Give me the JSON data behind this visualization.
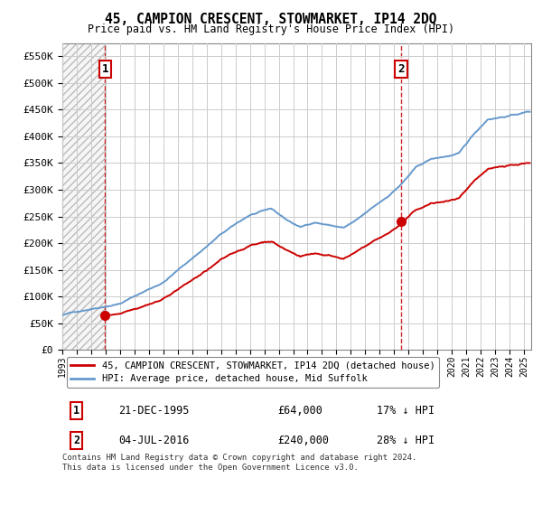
{
  "title": "45, CAMPION CRESCENT, STOWMARKET, IP14 2DQ",
  "subtitle": "Price paid vs. HM Land Registry's House Price Index (HPI)",
  "hpi_label": "HPI: Average price, detached house, Mid Suffolk",
  "price_label": "45, CAMPION CRESCENT, STOWMARKET, IP14 2DQ (detached house)",
  "sale1_date": "21-DEC-1995",
  "sale1_price": 64000,
  "sale1_price_str": "£64,000",
  "sale1_hpi_diff": "17% ↓ HPI",
  "sale2_date": "04-JUL-2016",
  "sale2_price": 240000,
  "sale2_price_str": "£240,000",
  "sale2_hpi_diff": "28% ↓ HPI",
  "sale1_year": 1995.97,
  "sale2_year": 2016.5,
  "annotation1": "1",
  "annotation2": "2",
  "ylim": [
    0,
    575000
  ],
  "xlim_start": 1993,
  "xlim_end": 2025.5,
  "hpi_color": "#6699cc",
  "price_color": "#cc0000",
  "vline_color": "#cc0000",
  "grid_color": "#cccccc",
  "background_color": "#ffffff",
  "footnote": "Contains HM Land Registry data © Crown copyright and database right 2024.\nThis data is licensed under the Open Government Licence v3.0.",
  "yticks": [
    0,
    50000,
    100000,
    150000,
    200000,
    250000,
    300000,
    350000,
    400000,
    450000,
    500000,
    550000
  ],
  "ytick_labels": [
    "£0",
    "£50K",
    "£100K",
    "£150K",
    "£200K",
    "£250K",
    "£300K",
    "£350K",
    "£400K",
    "£450K",
    "£500K",
    "£550K"
  ],
  "xtick_years": [
    1993,
    1994,
    1995,
    1996,
    1997,
    1998,
    1999,
    2000,
    2001,
    2002,
    2003,
    2004,
    2005,
    2006,
    2007,
    2008,
    2009,
    2010,
    2011,
    2012,
    2013,
    2014,
    2015,
    2016,
    2017,
    2018,
    2019,
    2020,
    2021,
    2022,
    2023,
    2024,
    2025
  ]
}
